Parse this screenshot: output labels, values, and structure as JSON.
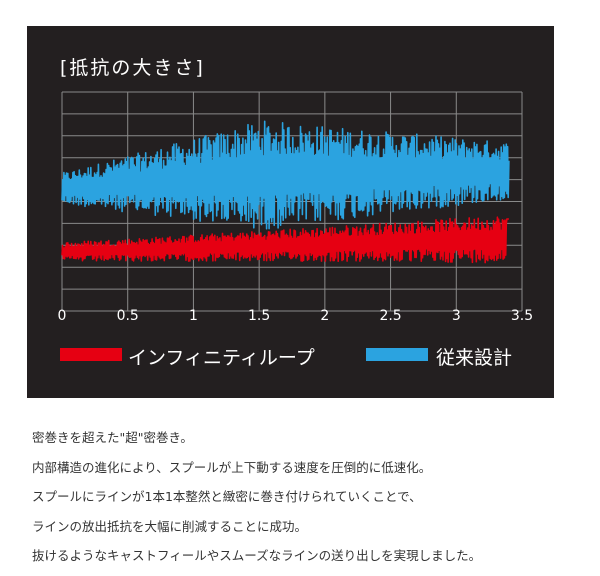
{
  "chart_data": {
    "type": "line",
    "title": "[抵抗の大きさ]",
    "xlabel": "",
    "ylabel": "",
    "xlim": [
      0,
      3.5
    ],
    "x_ticks": [
      "0",
      "0.5",
      "1",
      "1.5",
      "2",
      "2.5",
      "3",
      "3.5"
    ],
    "grid": true,
    "legend_position": "bottom",
    "series": [
      {
        "name": "インフィニティループ",
        "color": "#e60012",
        "x_range": [
          0,
          3.4
        ],
        "level_start": 0.27,
        "level_end": 0.33,
        "amplitude_start": 0.045,
        "amplitude_end": 0.11,
        "end_spike": 0.42
      },
      {
        "name": "従来設計",
        "color": "#2ba3e0",
        "x_range": [
          0,
          3.4
        ],
        "level_start": 0.56,
        "level_peak": 0.62,
        "level_end": 0.64,
        "amplitude_start": 0.07,
        "amplitude_peak": 0.25,
        "amplitude_end": 0.13
      }
    ]
  },
  "caption_lines": [
    "密巻きを超えた\"超\"密巻き。",
    "内部構造の進化により、スプールが上下動する速度を圧倒的に低速化。",
    "スプールにラインが1本1本整然と緻密に巻き付けられていくことで、",
    "ラインの放出抵抗を大幅に削減することに成功。",
    "抜けるようなキャストフィールやスムーズなラインの送り出しを実現しました。"
  ]
}
